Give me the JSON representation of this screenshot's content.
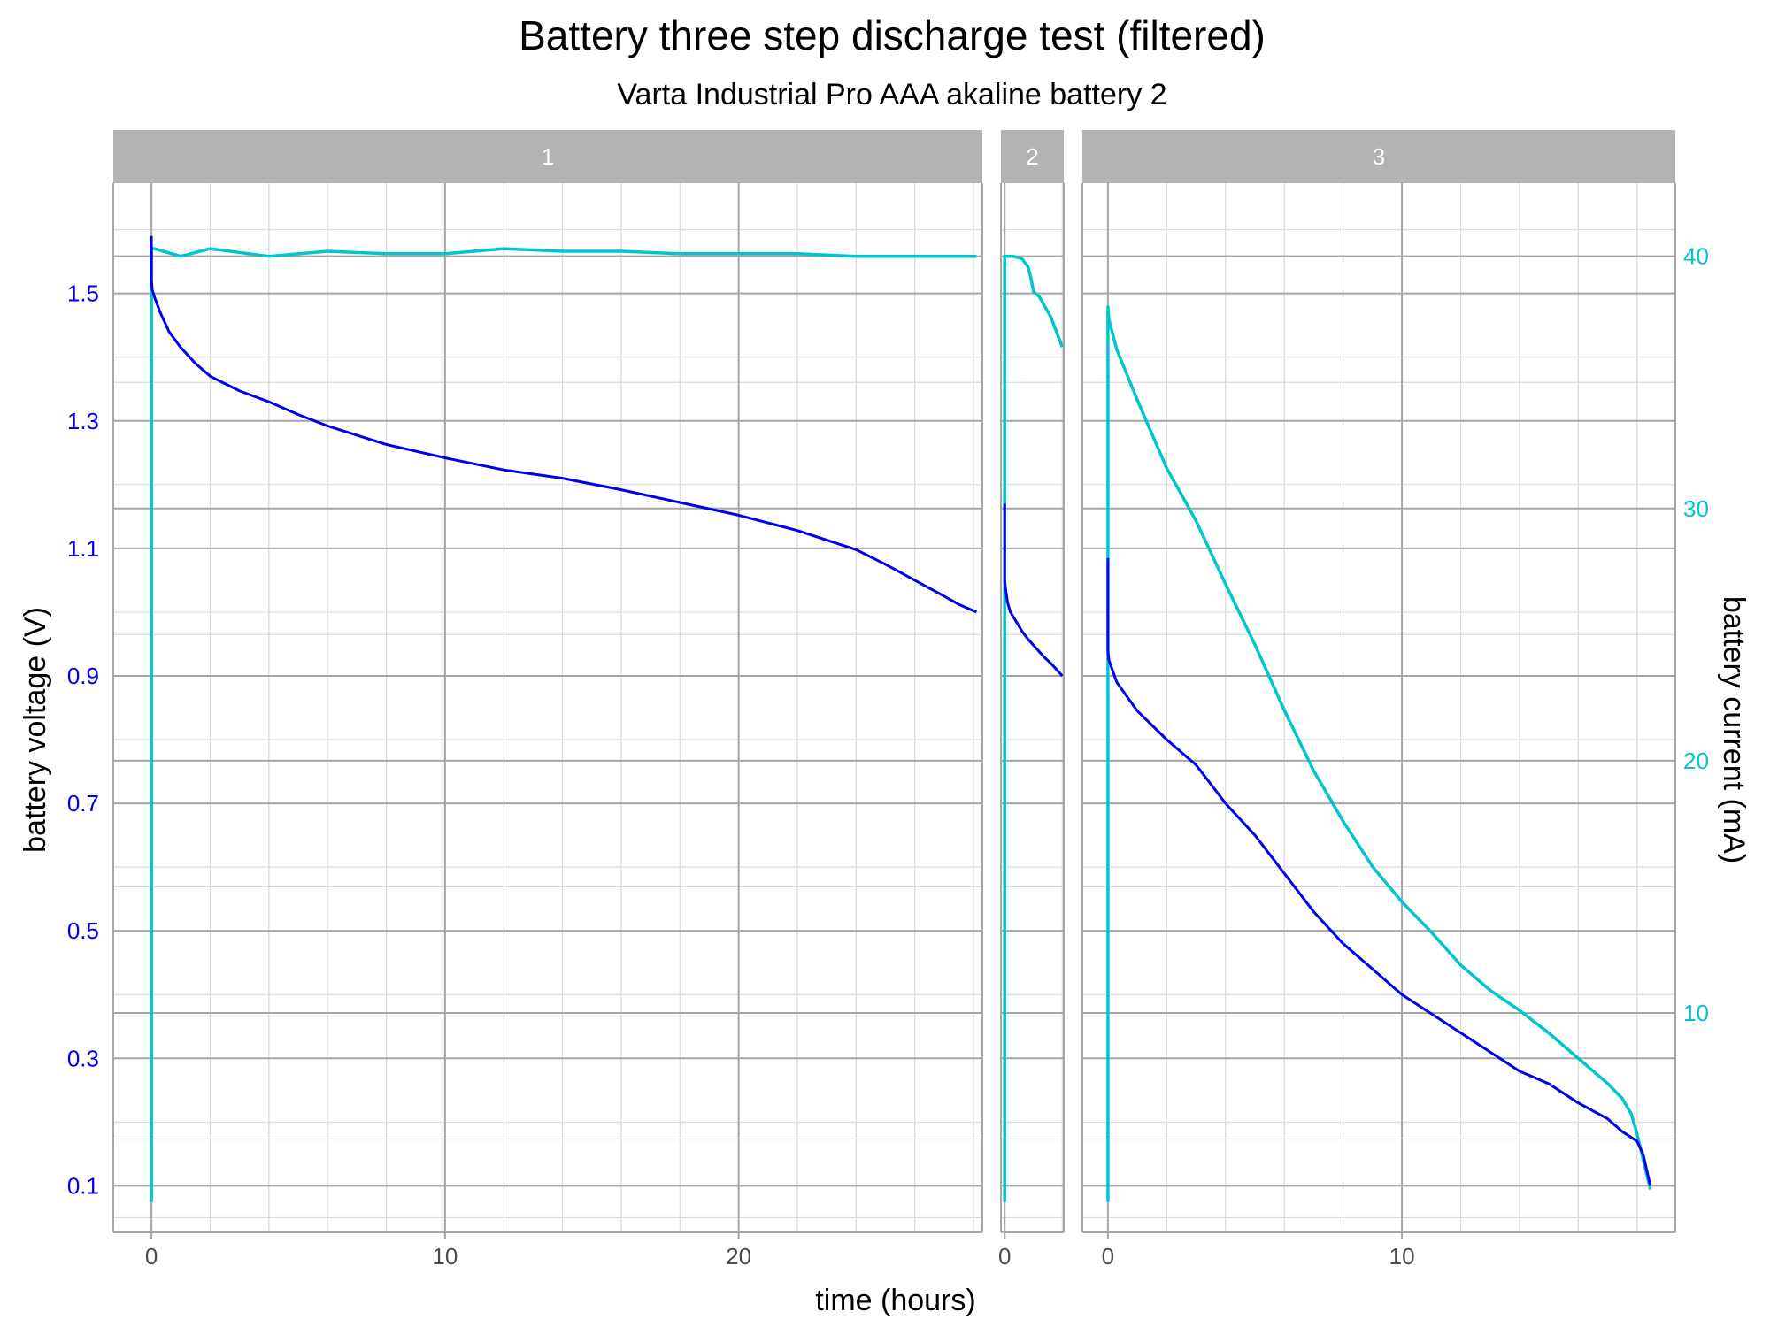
{
  "chart_data": {
    "type": "line",
    "title": "Battery three step discharge test (filtered)",
    "subtitle": "Varta Industrial Pro AAA akaline battery 2",
    "xlabel": "time (hours)",
    "ylabel_left": "battery voltage (V)",
    "ylabel_right": "battery current (mA)",
    "y_left_ticks": [
      "0.1",
      "0.3",
      "0.5",
      "0.7",
      "0.9",
      "1.1",
      "1.3",
      "1.5"
    ],
    "y_right_ticks": [
      "10",
      "20",
      "30",
      "40"
    ],
    "ylim_left": [
      0.027,
      1.673
    ],
    "ylim_right": [
      1.3,
      42.9
    ],
    "colors": {
      "voltage": "#0000ee",
      "current": "#00c5cd",
      "strip": "#b3b3b3",
      "grid_major": "#a6a6a6",
      "grid_minor": "#d9d9d9"
    },
    "grid": true,
    "panels": [
      {
        "label": "1",
        "xlim": [
          -1.3,
          28.3
        ],
        "x_ticks": [
          "0",
          "10",
          "20"
        ],
        "voltage": {
          "x": [
            0,
            0,
            0.03,
            0.1,
            0.3,
            0.6,
            1,
            1.5,
            2,
            3,
            4,
            5,
            6,
            8,
            10,
            12,
            14,
            16,
            18,
            20,
            22,
            24,
            25,
            26,
            27,
            27.5,
            28.1
          ],
          "y": [
            1.59,
            1.52,
            1.505,
            1.495,
            1.47,
            1.44,
            1.415,
            1.39,
            1.37,
            1.347,
            1.33,
            1.31,
            1.292,
            1.263,
            1.242,
            1.223,
            1.21,
            1.192,
            1.172,
            1.152,
            1.128,
            1.098,
            1.075,
            1.05,
            1.025,
            1.012,
            1.0
          ]
        },
        "current": {
          "x": [
            0,
            0,
            0,
            0.1,
            1,
            2,
            4,
            6,
            8,
            10,
            12,
            14,
            16,
            18,
            20,
            22,
            24,
            26,
            28.1
          ],
          "y": [
            2.5,
            30,
            40.3,
            40.3,
            40.0,
            40.3,
            40.0,
            40.2,
            40.1,
            40.1,
            40.3,
            40.2,
            40.2,
            40.1,
            40.1,
            40.1,
            40.0,
            40.0,
            40.0
          ]
        }
      },
      {
        "label": "2",
        "xlim": [
          -0.13,
          2.05
        ],
        "x_ticks": [
          "0"
        ],
        "voltage": {
          "x": [
            0,
            0,
            0.02,
            0.05,
            0.1,
            0.2,
            0.4,
            0.6,
            0.8,
            1.0,
            1.2,
            1.4,
            1.6,
            1.8,
            2.0
          ],
          "y": [
            1.17,
            1.05,
            1.04,
            1.03,
            1.015,
            1.0,
            0.985,
            0.97,
            0.958,
            0.948,
            0.938,
            0.928,
            0.92,
            0.91,
            0.9
          ]
        },
        "current": {
          "x": [
            0,
            0,
            0.05,
            0.3,
            0.6,
            0.8,
            0.9,
            1.0,
            1.2,
            1.4,
            1.6,
            1.8,
            2.0
          ],
          "y": [
            2.5,
            40.0,
            40.0,
            40.0,
            39.9,
            39.6,
            39.2,
            38.6,
            38.4,
            38.0,
            37.6,
            37.0,
            36.4
          ]
        }
      },
      {
        "label": "3",
        "xlim": [
          -0.87,
          19.3
        ],
        "x_ticks": [
          "0",
          "10"
        ],
        "voltage": {
          "x": [
            0,
            0,
            0.03,
            0.3,
            1,
            2,
            3,
            4,
            5,
            6,
            7,
            8,
            9,
            10,
            11,
            12,
            13,
            14,
            15,
            16,
            17,
            17.5,
            18.0,
            18.2,
            18.45
          ],
          "y": [
            1.085,
            0.94,
            0.925,
            0.89,
            0.845,
            0.8,
            0.76,
            0.7,
            0.65,
            0.59,
            0.53,
            0.48,
            0.44,
            0.4,
            0.37,
            0.34,
            0.31,
            0.28,
            0.26,
            0.23,
            0.205,
            0.185,
            0.17,
            0.15,
            0.1
          ]
        },
        "current": {
          "x": [
            0,
            0,
            0,
            0.03,
            0.3,
            1,
            2,
            3,
            4,
            5,
            6,
            7,
            8,
            9,
            10,
            11,
            12,
            13,
            14,
            15,
            16,
            17,
            17.5,
            17.8,
            18.0,
            18.2,
            18.45
          ],
          "y": [
            2.5,
            30,
            38.0,
            37.5,
            36.3,
            34.3,
            31.6,
            29.5,
            27.0,
            24.6,
            22.0,
            19.6,
            17.6,
            15.8,
            14.4,
            13.2,
            11.9,
            10.9,
            10.1,
            9.2,
            8.2,
            7.2,
            6.6,
            6.0,
            5.2,
            4.2,
            3.0
          ]
        }
      }
    ]
  }
}
